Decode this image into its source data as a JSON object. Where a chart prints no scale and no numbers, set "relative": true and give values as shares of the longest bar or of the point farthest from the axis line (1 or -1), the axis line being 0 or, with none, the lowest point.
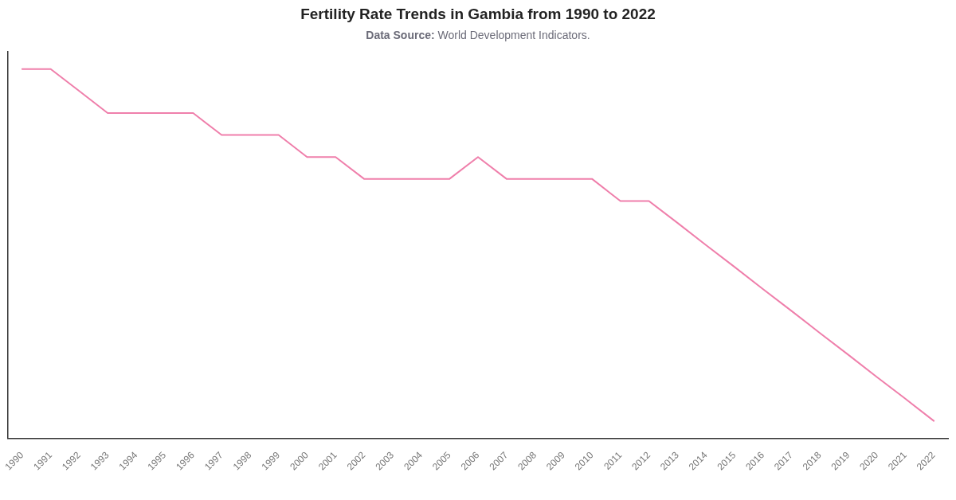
{
  "chart_data": {
    "type": "line",
    "title": "Fertility Rate Trends in Gambia from 1990 to 2022",
    "subtitle": "Data Source: World Development Indicators.",
    "categories": [
      "1990",
      "1991",
      "1992",
      "1993",
      "1994",
      "1995",
      "1996",
      "1997",
      "1998",
      "1999",
      "2000",
      "2001",
      "2002",
      "2003",
      "2004",
      "2005",
      "2006",
      "2007",
      "2008",
      "2009",
      "2010",
      "2011",
      "2012",
      "2013",
      "2014",
      "2015",
      "2016",
      "2017",
      "2018",
      "2019",
      "2020",
      "2021",
      "2022"
    ],
    "values": [
      1.0,
      1.0,
      0.941,
      0.881,
      0.881,
      0.881,
      0.881,
      0.822,
      0.822,
      0.822,
      0.762,
      0.762,
      0.703,
      0.703,
      0.703,
      0.703,
      0.762,
      0.703,
      0.703,
      0.703,
      0.703,
      0.643,
      0.643,
      0.584,
      0.524,
      0.465,
      0.405,
      0.346,
      0.286,
      0.227,
      0.167,
      0.108,
      0.048
    ],
    "color": "#ef7fab",
    "relative": true
  }
}
